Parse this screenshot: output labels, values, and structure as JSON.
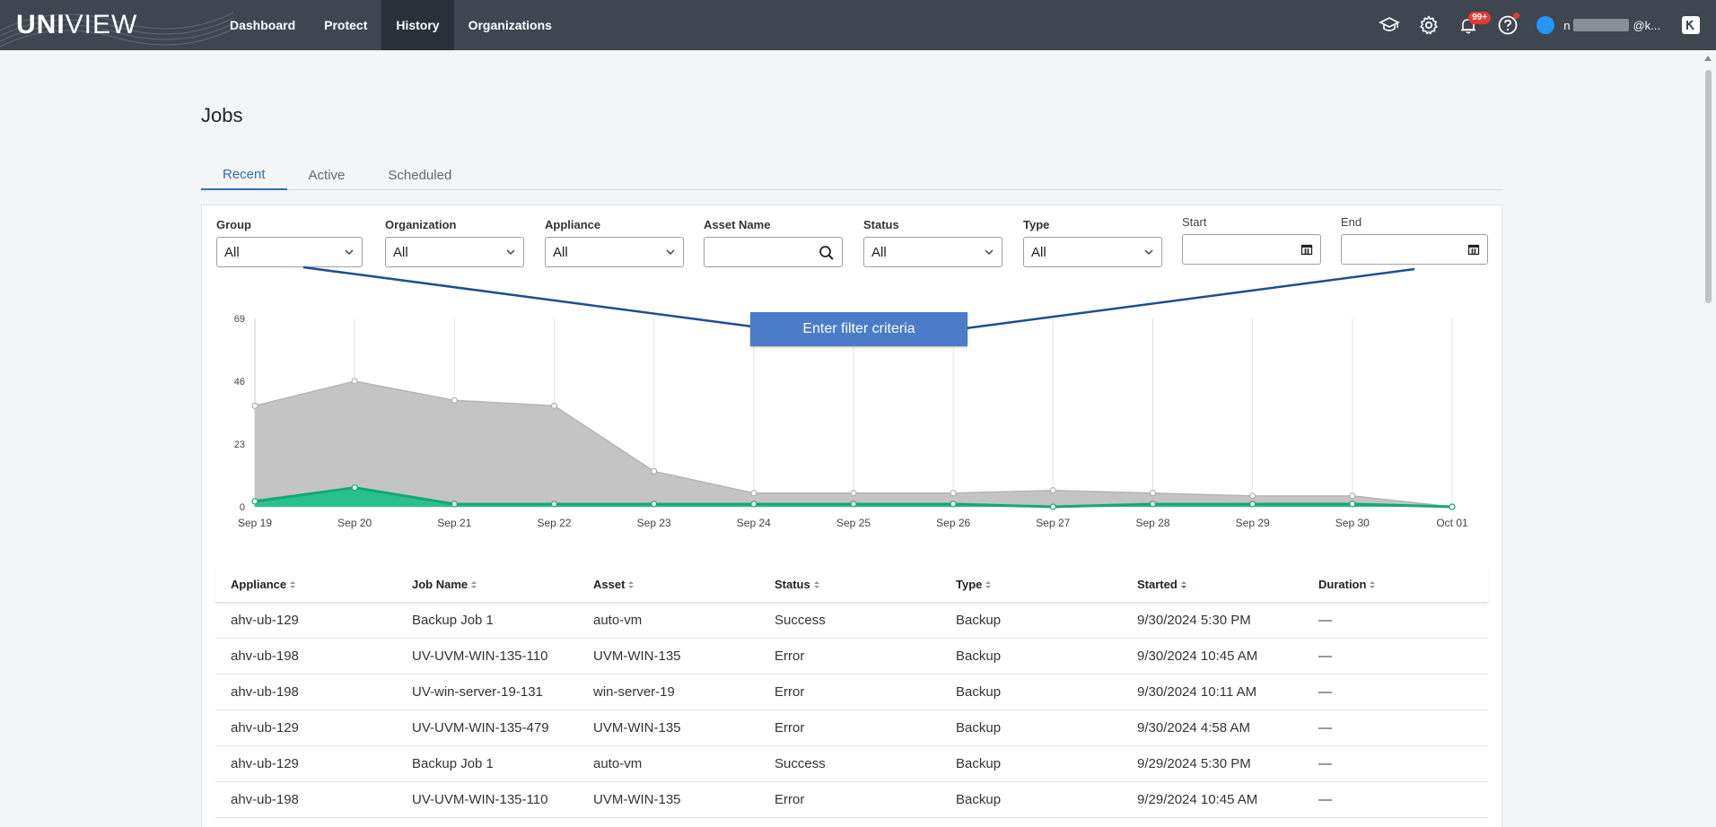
{
  "app": {
    "logo_bold": "UNI",
    "logo_light": "VIEW"
  },
  "nav": {
    "items": [
      {
        "label": "Dashboard"
      },
      {
        "label": "Protect"
      },
      {
        "label": "History",
        "active": true
      },
      {
        "label": "Organizations"
      }
    ]
  },
  "topbar": {
    "notifications_badge": "99+",
    "user_prefix": "n",
    "user_suffix": "@k..."
  },
  "page": {
    "title": "Jobs",
    "tabs": [
      {
        "label": "Recent",
        "active": true
      },
      {
        "label": "Active"
      },
      {
        "label": "Scheduled"
      }
    ]
  },
  "filters": {
    "group": {
      "label": "Group",
      "value": "All"
    },
    "organization": {
      "label": "Organization",
      "value": "All"
    },
    "appliance": {
      "label": "Appliance",
      "value": "All"
    },
    "asset_name": {
      "label": "Asset Name",
      "value": ""
    },
    "status": {
      "label": "Status",
      "value": "All"
    },
    "type": {
      "label": "Type",
      "value": "All"
    },
    "start": {
      "label": "Start",
      "value": ""
    },
    "end": {
      "label": "End",
      "value": ""
    }
  },
  "annotation": {
    "text": "Enter filter criteria"
  },
  "chart_data": {
    "type": "area",
    "x": [
      "Sep 19",
      "Sep 20",
      "Sep 21",
      "Sep 22",
      "Sep 23",
      "Sep 24",
      "Sep 25",
      "Sep 26",
      "Sep 27",
      "Sep 28",
      "Sep 29",
      "Sep 30",
      "Oct 01"
    ],
    "yticks": [
      0,
      23,
      46,
      69
    ],
    "ylim": [
      0,
      69
    ],
    "series": [
      {
        "values": [
          37,
          46,
          39,
          37,
          13,
          5,
          5,
          5,
          6,
          5,
          4,
          4,
          0
        ],
        "color": "#c4c4c4"
      },
      {
        "values": [
          2,
          7,
          1,
          1,
          1,
          1,
          1,
          1,
          0,
          1,
          1,
          1,
          0
        ],
        "color": "#22c08a"
      }
    ],
    "grid": "vertical"
  },
  "table": {
    "columns": [
      "Appliance",
      "Job Name",
      "Asset",
      "Status",
      "Type",
      "Started",
      "Duration"
    ],
    "rows": [
      [
        "ahv-ub-129",
        "Backup Job 1",
        "auto-vm",
        "Success",
        "Backup",
        "9/30/2024 5:30 PM",
        "—"
      ],
      [
        "ahv-ub-198",
        "UV-UVM-WIN-135-110",
        "UVM-WIN-135",
        "Error",
        "Backup",
        "9/30/2024 10:45 AM",
        "—"
      ],
      [
        "ahv-ub-198",
        "UV-win-server-19-131",
        "win-server-19",
        "Error",
        "Backup",
        "9/30/2024 10:11 AM",
        "—"
      ],
      [
        "ahv-ub-129",
        "UV-UVM-WIN-135-479",
        "UVM-WIN-135",
        "Error",
        "Backup",
        "9/30/2024 4:58 AM",
        "—"
      ],
      [
        "ahv-ub-129",
        "Backup Job 1",
        "auto-vm",
        "Success",
        "Backup",
        "9/29/2024 5:30 PM",
        "—"
      ],
      [
        "ahv-ub-198",
        "UV-UVM-WIN-135-110",
        "UVM-WIN-135",
        "Error",
        "Backup",
        "9/29/2024 10:45 AM",
        "—"
      ]
    ]
  }
}
